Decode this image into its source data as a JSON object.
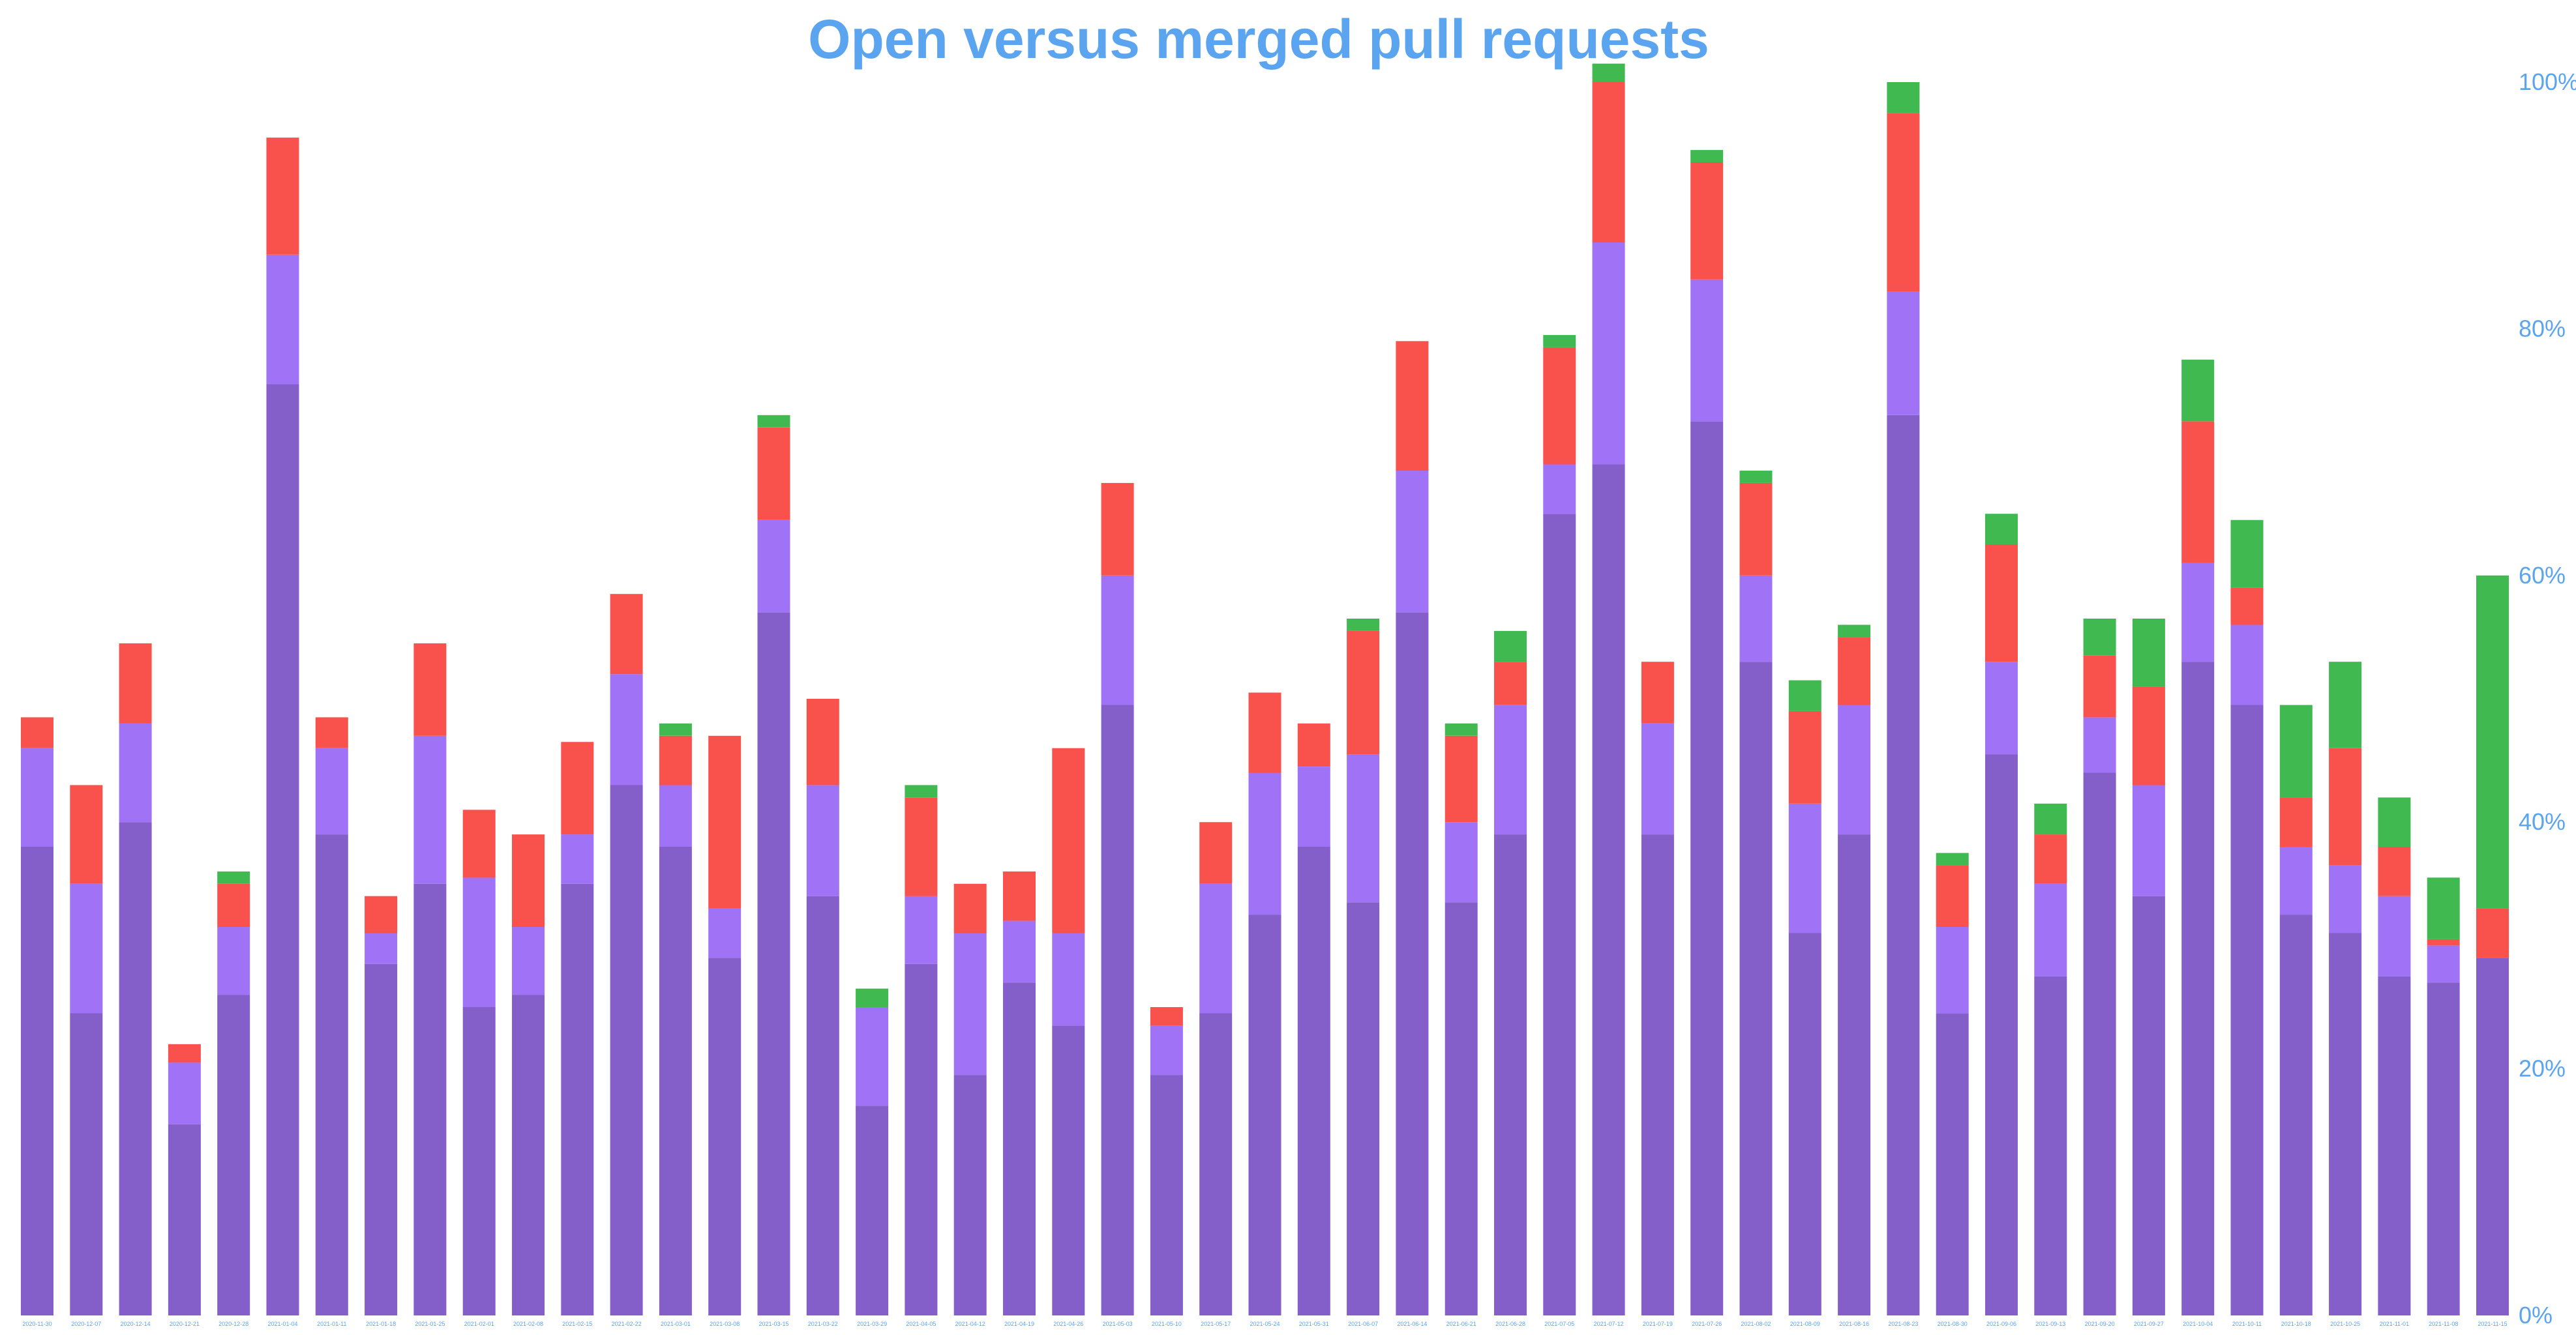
{
  "chart_data": {
    "type": "bar",
    "stacked": true,
    "title": "Open versus merged pull requests",
    "xlabel": "",
    "ylabel": "",
    "ylim": [
      0,
      100
    ],
    "y_axis_side": "right",
    "y_ticks": [
      "0%",
      "20%",
      "40%",
      "60%",
      "80%",
      "100%"
    ],
    "grid": false,
    "legend": "none",
    "categories": [
      "2020-11-30",
      "2020-12-07",
      "2020-12-14",
      "2020-12-21",
      "2020-12-28",
      "2021-01-04",
      "2021-01-11",
      "2021-01-18",
      "2021-01-25",
      "2021-02-01",
      "2021-02-08",
      "2021-02-15",
      "2021-02-22",
      "2021-03-01",
      "2021-03-08",
      "2021-03-15",
      "2021-03-22",
      "2021-03-29",
      "2021-04-05",
      "2021-04-12",
      "2021-04-19",
      "2021-04-26",
      "2021-05-03",
      "2021-05-10",
      "2021-05-17",
      "2021-05-24",
      "2021-05-31",
      "2021-06-07",
      "2021-06-14",
      "2021-06-21",
      "2021-06-28",
      "2021-07-05",
      "2021-07-12",
      "2021-07-19",
      "2021-07-26",
      "2021-08-02",
      "2021-08-09",
      "2021-08-16",
      "2021-08-23",
      "2021-08-30",
      "2021-09-06",
      "2021-09-13",
      "2021-09-20",
      "2021-09-27",
      "2021-10-04",
      "2021-10-11",
      "2021-10-18",
      "2021-10-25",
      "2021-11-01",
      "2021-11-08",
      "2021-11-15"
    ],
    "series": [
      {
        "color": "#845ec9",
        "values": [
          38,
          24.5,
          40,
          15.5,
          26,
          75.5,
          39,
          28.5,
          35,
          25,
          26,
          35,
          43,
          38,
          29,
          57,
          34,
          17,
          28.5,
          19.5,
          27,
          23.5,
          49.5,
          19.5,
          24.5,
          32.5,
          38,
          33.5,
          57,
          33.5,
          39,
          65,
          69,
          39,
          72.5,
          53,
          31,
          39,
          73,
          24.5,
          45.5,
          27.5,
          44,
          34,
          53,
          49.5,
          32.5,
          31,
          27.5,
          27,
          29
        ]
      },
      {
        "color": "#a072f5",
        "values": [
          8,
          10.5,
          8,
          5,
          5.5,
          10.5,
          7,
          2.5,
          12,
          10.5,
          5.5,
          4,
          9,
          5,
          4,
          7.5,
          9,
          8,
          5.5,
          11.5,
          5,
          7.5,
          10.5,
          4,
          10.5,
          11.5,
          6.5,
          12,
          11.5,
          6.5,
          10.5,
          4,
          18,
          9,
          11.5,
          7,
          10.5,
          10.5,
          10,
          7,
          7.5,
          7.5,
          4.5,
          9,
          8,
          6.5,
          5.5,
          5.5,
          6.5,
          3,
          0
        ]
      },
      {
        "color": "#f9524c",
        "values": [
          2.5,
          8,
          6.5,
          1.5,
          3.5,
          9.5,
          2.5,
          3,
          7.5,
          5.5,
          7.5,
          7.5,
          6.5,
          4,
          14,
          7.5,
          7,
          0,
          8,
          4,
          4,
          15,
          7.5,
          1.5,
          5,
          6.5,
          3.5,
          10,
          10.5,
          7,
          3.5,
          9.5,
          13,
          5,
          9.5,
          7.5,
          7.5,
          5.5,
          14.5,
          5,
          9.5,
          4,
          5,
          8,
          11.5,
          3,
          4,
          9.5,
          4,
          0.5,
          4
        ]
      },
      {
        "color": "#3fb950",
        "values": [
          0,
          0,
          0,
          0,
          1,
          0,
          0,
          0,
          0,
          0,
          0,
          0,
          0,
          1,
          0,
          1,
          0,
          1.5,
          1,
          0,
          0,
          0,
          0,
          0,
          0,
          0,
          0,
          1,
          0,
          1,
          2.5,
          1,
          1.5,
          0,
          1,
          1,
          2.5,
          1,
          2.5,
          1,
          2.5,
          2.5,
          3,
          5.5,
          5,
          5.5,
          7.5,
          7,
          4,
          5,
          27
        ]
      }
    ]
  }
}
